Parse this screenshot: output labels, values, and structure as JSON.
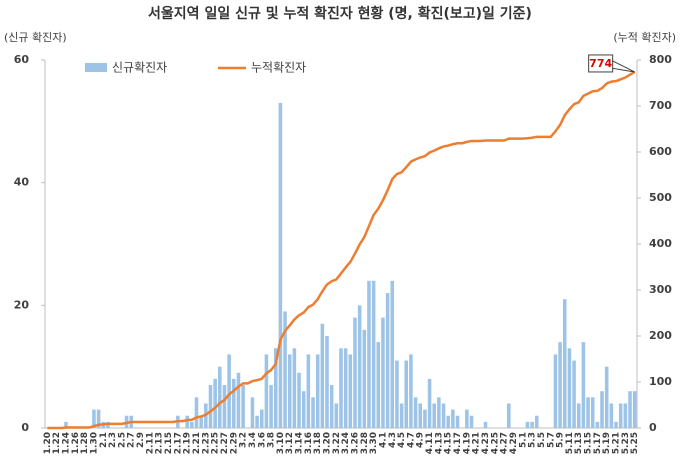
{
  "chart_data": {
    "type": "bar",
    "title": "서울지역 일일 신규 및 누적 확진자 현황 (명, 확진(보고)일 기준)",
    "y_label": "(신규 확진자)",
    "y2_label": "(누적 확진자)",
    "annotation": "774",
    "categories": [
      "1.20",
      null,
      "1.22",
      null,
      "1.24",
      null,
      "1.26",
      null,
      "1.28",
      null,
      "1.30",
      null,
      "2.1",
      null,
      "2.3",
      null,
      "2.5",
      null,
      "2.7",
      null,
      "2.9",
      null,
      "2.11",
      null,
      "2.13",
      null,
      "2.15",
      null,
      "2.17",
      null,
      "2.19",
      null,
      "2.21",
      null,
      "2.23",
      null,
      "2.25",
      null,
      "2.27",
      null,
      "2.29",
      null,
      "3.2",
      null,
      "3.4",
      null,
      "3.6",
      null,
      "3.8",
      null,
      "3.10",
      null,
      "3.12",
      null,
      "3.14",
      null,
      "3.16",
      null,
      "3.18",
      null,
      "3.20",
      null,
      "3.22",
      null,
      "3.24",
      null,
      "3.26",
      null,
      "3.28",
      null,
      "3.30",
      null,
      "4.1",
      null,
      "4.3",
      null,
      "4.5",
      null,
      "4.7",
      null,
      "4.9",
      null,
      "4.11",
      null,
      "4.13",
      null,
      "4.15",
      null,
      "4.17",
      null,
      "4.19",
      null,
      "4.21",
      null,
      "4.23",
      null,
      "4.25",
      null,
      "4.27",
      null,
      "4.29",
      null,
      "5.1",
      null,
      "5.3",
      null,
      "5.5",
      null,
      "5.7",
      null,
      "5.9",
      null,
      "5.11",
      null,
      "5.13",
      null,
      "5.15",
      null,
      "5.17",
      null,
      "5.19",
      null,
      "5.21",
      null,
      "5.23",
      null,
      "5.25"
    ],
    "series": [
      {
        "name": "신규확진자",
        "type": "bar",
        "color": "#9dc3e6",
        "values": [
          0,
          0,
          0,
          0,
          1,
          0,
          0,
          0,
          0,
          0,
          3,
          3,
          1,
          1,
          0,
          0,
          0,
          2,
          2,
          0,
          0,
          0,
          0,
          0,
          0,
          0,
          0,
          0,
          2,
          0,
          2,
          1,
          5,
          2,
          4,
          7,
          8,
          10,
          7,
          12,
          8,
          9,
          7,
          0,
          5,
          2,
          3,
          12,
          7,
          13,
          53,
          19,
          12,
          13,
          9,
          6,
          12,
          5,
          12,
          17,
          15,
          7,
          4,
          13,
          13,
          12,
          18,
          20,
          16,
          24,
          24,
          14,
          18,
          22,
          24,
          11,
          4,
          11,
          12,
          5,
          4,
          3,
          8,
          4,
          5,
          4,
          2,
          3,
          2,
          0,
          3,
          2,
          0,
          0,
          1,
          0,
          0,
          0,
          0,
          4,
          0,
          0,
          0,
          1,
          1,
          2,
          0,
          0,
          0,
          12,
          14,
          21,
          13,
          11,
          4,
          14,
          5,
          5,
          1,
          6,
          10,
          4,
          1,
          4,
          4,
          6,
          6
        ]
      },
      {
        "name": "누적확진자",
        "type": "line",
        "axis": "y2",
        "color": "#ed7d31",
        "values": [
          0,
          0,
          0,
          0,
          1,
          1,
          1,
          1,
          1,
          1,
          4,
          7,
          8,
          9,
          9,
          9,
          9,
          11,
          13,
          13,
          13,
          13,
          13,
          13,
          13,
          13,
          13,
          13,
          15,
          15,
          17,
          18,
          23,
          25,
          29,
          36,
          44,
          54,
          61,
          73,
          81,
          90,
          97,
          97,
          102,
          104,
          107,
          119,
          126,
          139,
          192,
          211,
          223,
          236,
          245,
          251,
          263,
          268,
          280,
          297,
          312,
          319,
          323,
          336,
          349,
          361,
          379,
          399,
          415,
          439,
          463,
          477,
          495,
          517,
          541,
          552,
          556,
          567,
          579,
          584,
          588,
          591,
          599,
          603,
          608,
          612,
          614,
          617,
          619,
          619,
          622,
          624,
          624,
          624,
          625,
          625,
          625,
          625,
          625,
          629,
          629,
          629,
          629,
          630,
          631,
          633,
          633,
          633,
          633,
          645,
          659,
          680,
          693,
          704,
          708,
          722,
          727,
          732,
          733,
          739,
          749,
          753,
          754,
          758,
          762,
          768,
          774
        ]
      }
    ],
    "ylim": [
      0,
      60
    ],
    "yticks": [
      0,
      20,
      40,
      60
    ],
    "y2lim": [
      0,
      800
    ],
    "y2ticks": [
      0,
      100,
      200,
      300,
      400,
      500,
      600,
      700,
      800
    ],
    "annotation_color": "#e00000"
  }
}
